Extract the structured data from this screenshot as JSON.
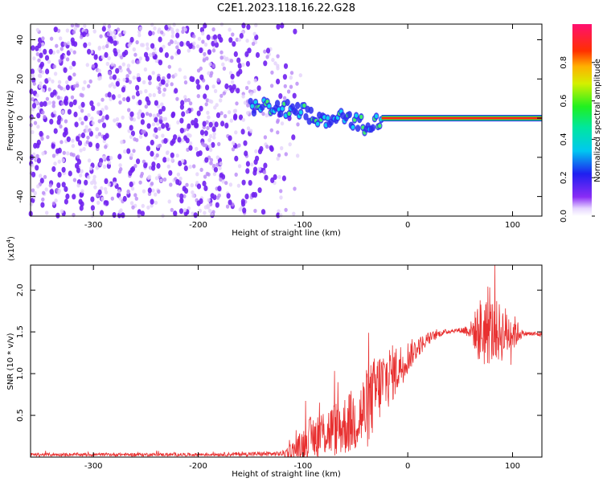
{
  "figure": {
    "title": "C2E1.2023.118.16.22.G28"
  },
  "colors": {
    "snr_line": "#e83030",
    "frame": "#000000",
    "noise": "#7a2cf0"
  },
  "chart_data": [
    {
      "type": "heatmap",
      "title": "C2E1.2023.118.16.22.G28",
      "xlabel": "Height of straight line (km)",
      "ylabel": "Frequency (Hz)",
      "xlim": [
        -360,
        128
      ],
      "ylim": [
        -50,
        48
      ],
      "xticks": [
        -300,
        -200,
        -100,
        0,
        100
      ],
      "yticks": [
        -40,
        -20,
        0,
        20,
        40
      ],
      "colorbar": {
        "label": "Normalized spectral amplitude",
        "range": [
          0,
          1
        ],
        "ticks": [
          "0.0",
          "0.2",
          "0.4",
          "0.6",
          "0.8"
        ],
        "tick_values": [
          0.0,
          0.2,
          0.4,
          0.6,
          0.8
        ]
      },
      "features": {
        "noise_region_x": [
          -360,
          -110
        ],
        "noise_density": "dense from -360 to -150 km, sparse to -110 km",
        "signal_track": [
          {
            "x": -150,
            "y": 6
          },
          {
            "x": -120,
            "y": 5
          },
          {
            "x": -100,
            "y": 3
          },
          {
            "x": -80,
            "y": 0
          },
          {
            "x": -60,
            "y": 1
          },
          {
            "x": -40,
            "y": -4
          },
          {
            "x": -20,
            "y": 1
          },
          {
            "x": 0,
            "y": 0
          },
          {
            "x": 128,
            "y": 0
          }
        ],
        "steady_band": {
          "x_start": -25,
          "x_end": 128,
          "y": 0,
          "amplitude": 1.0
        }
      }
    },
    {
      "type": "line",
      "title": "",
      "xlabel": "Height of straight line (km)",
      "ylabel": "SNR (10 * v/v)",
      "y_multiplier": "(x10",
      "y_multiplier_exp": "4",
      "y_multiplier_close": ")",
      "xlim": [
        -360,
        128
      ],
      "ylim": [
        0,
        2.3
      ],
      "xticks": [
        -300,
        -200,
        -100,
        0,
        100
      ],
      "yticks": [
        "0.5",
        "1.0",
        "1.5",
        "2.0"
      ],
      "ytick_values": [
        0.5,
        1.0,
        1.5,
        2.0
      ],
      "series": [
        {
          "name": "SNR",
          "x": [
            -360,
            -300,
            -200,
            -120,
            -105,
            -95,
            -80,
            -65,
            -50,
            -40,
            -30,
            -20,
            -10,
            0,
            10,
            20,
            30,
            40,
            50,
            60,
            70,
            80,
            90,
            100,
            110,
            128
          ],
          "y": [
            0.03,
            0.03,
            0.03,
            0.04,
            0.1,
            0.22,
            0.3,
            0.35,
            0.45,
            0.55,
            0.8,
            0.95,
            1.05,
            1.2,
            1.32,
            1.42,
            1.48,
            1.51,
            1.52,
            1.52,
            1.5,
            1.51,
            1.49,
            1.5,
            1.48,
            1.47
          ],
          "noise": [
            0.02,
            0.02,
            0.02,
            0.03,
            0.15,
            0.25,
            0.3,
            0.35,
            0.4,
            0.5,
            0.45,
            0.4,
            0.3,
            0.2,
            0.12,
            0.08,
            0.04,
            0.03,
            0.03,
            0.1,
            0.45,
            0.4,
            0.35,
            0.25,
            0.03,
            0.03
          ]
        }
      ]
    }
  ]
}
